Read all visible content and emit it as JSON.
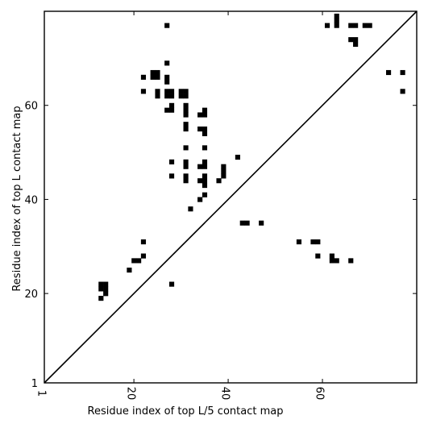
{
  "chart_data": {
    "type": "heatmap",
    "title": "",
    "xlabel": "Residue index of top L/5 contact map",
    "ylabel": "Residue index of top L contact map",
    "xlim": [
      1,
      80
    ],
    "ylim": [
      1,
      80
    ],
    "x_ticks": [
      1,
      20,
      40,
      60
    ],
    "y_ticks": [
      1,
      20,
      40,
      60
    ],
    "x_tick_labels": [
      "1",
      "20",
      "40",
      "60"
    ],
    "y_tick_labels": [
      "1",
      "20",
      "40",
      "60"
    ],
    "grid": false,
    "diagonal": true,
    "contact_color": "#000000",
    "cells": [
      {
        "x": 13,
        "y": 22
      },
      {
        "x": 14,
        "y": 22
      },
      {
        "x": 13,
        "y": 21
      },
      {
        "x": 14,
        "y": 21
      },
      {
        "x": 14,
        "y": 20
      },
      {
        "x": 13,
        "y": 19
      },
      {
        "x": 19,
        "y": 25
      },
      {
        "x": 20,
        "y": 27
      },
      {
        "x": 21,
        "y": 27
      },
      {
        "x": 22,
        "y": 28
      },
      {
        "x": 22,
        "y": 31
      },
      {
        "x": 28,
        "y": 22
      },
      {
        "x": 32,
        "y": 38
      },
      {
        "x": 22,
        "y": 66
      },
      {
        "x": 22,
        "y": 63
      },
      {
        "x": 24,
        "y": 67
      },
      {
        "x": 25,
        "y": 67
      },
      {
        "x": 24,
        "y": 66
      },
      {
        "x": 25,
        "y": 66
      },
      {
        "x": 25,
        "y": 63
      },
      {
        "x": 25,
        "y": 62
      },
      {
        "x": 27,
        "y": 77
      },
      {
        "x": 27,
        "y": 69
      },
      {
        "x": 27,
        "y": 66
      },
      {
        "x": 27,
        "y": 65
      },
      {
        "x": 27,
        "y": 63
      },
      {
        "x": 28,
        "y": 63
      },
      {
        "x": 27,
        "y": 62
      },
      {
        "x": 28,
        "y": 62
      },
      {
        "x": 28,
        "y": 60
      },
      {
        "x": 27,
        "y": 59
      },
      {
        "x": 28,
        "y": 59
      },
      {
        "x": 28,
        "y": 48
      },
      {
        "x": 28,
        "y": 45
      },
      {
        "x": 30,
        "y": 63
      },
      {
        "x": 31,
        "y": 63
      },
      {
        "x": 30,
        "y": 62
      },
      {
        "x": 31,
        "y": 62
      },
      {
        "x": 31,
        "y": 60
      },
      {
        "x": 31,
        "y": 59
      },
      {
        "x": 31,
        "y": 58
      },
      {
        "x": 31,
        "y": 56
      },
      {
        "x": 31,
        "y": 55
      },
      {
        "x": 31,
        "y": 51
      },
      {
        "x": 31,
        "y": 48
      },
      {
        "x": 31,
        "y": 47
      },
      {
        "x": 31,
        "y": 45
      },
      {
        "x": 31,
        "y": 44
      },
      {
        "x": 34,
        "y": 58
      },
      {
        "x": 35,
        "y": 59
      },
      {
        "x": 35,
        "y": 58
      },
      {
        "x": 34,
        "y": 55
      },
      {
        "x": 35,
        "y": 55
      },
      {
        "x": 35,
        "y": 54
      },
      {
        "x": 35,
        "y": 51
      },
      {
        "x": 35,
        "y": 48
      },
      {
        "x": 34,
        "y": 47
      },
      {
        "x": 35,
        "y": 47
      },
      {
        "x": 35,
        "y": 45
      },
      {
        "x": 34,
        "y": 44
      },
      {
        "x": 35,
        "y": 44
      },
      {
        "x": 35,
        "y": 43
      },
      {
        "x": 35,
        "y": 41
      },
      {
        "x": 34,
        "y": 40
      },
      {
        "x": 38,
        "y": 44
      },
      {
        "x": 39,
        "y": 47
      },
      {
        "x": 39,
        "y": 46
      },
      {
        "x": 39,
        "y": 45
      },
      {
        "x": 42,
        "y": 49
      },
      {
        "x": 43,
        "y": 35
      },
      {
        "x": 44,
        "y": 35
      },
      {
        "x": 47,
        "y": 35
      },
      {
        "x": 55,
        "y": 31
      },
      {
        "x": 58,
        "y": 31
      },
      {
        "x": 59,
        "y": 31
      },
      {
        "x": 59,
        "y": 28
      },
      {
        "x": 62,
        "y": 28
      },
      {
        "x": 62,
        "y": 27
      },
      {
        "x": 63,
        "y": 27
      },
      {
        "x": 66,
        "y": 27
      },
      {
        "x": 61,
        "y": 77
      },
      {
        "x": 63,
        "y": 79
      },
      {
        "x": 63,
        "y": 78
      },
      {
        "x": 63,
        "y": 77
      },
      {
        "x": 66,
        "y": 77
      },
      {
        "x": 67,
        "y": 77
      },
      {
        "x": 69,
        "y": 77
      },
      {
        "x": 70,
        "y": 77
      },
      {
        "x": 66,
        "y": 74
      },
      {
        "x": 67,
        "y": 74
      },
      {
        "x": 67,
        "y": 73
      },
      {
        "x": 74,
        "y": 67
      },
      {
        "x": 77,
        "y": 67
      },
      {
        "x": 77,
        "y": 63
      }
    ]
  }
}
